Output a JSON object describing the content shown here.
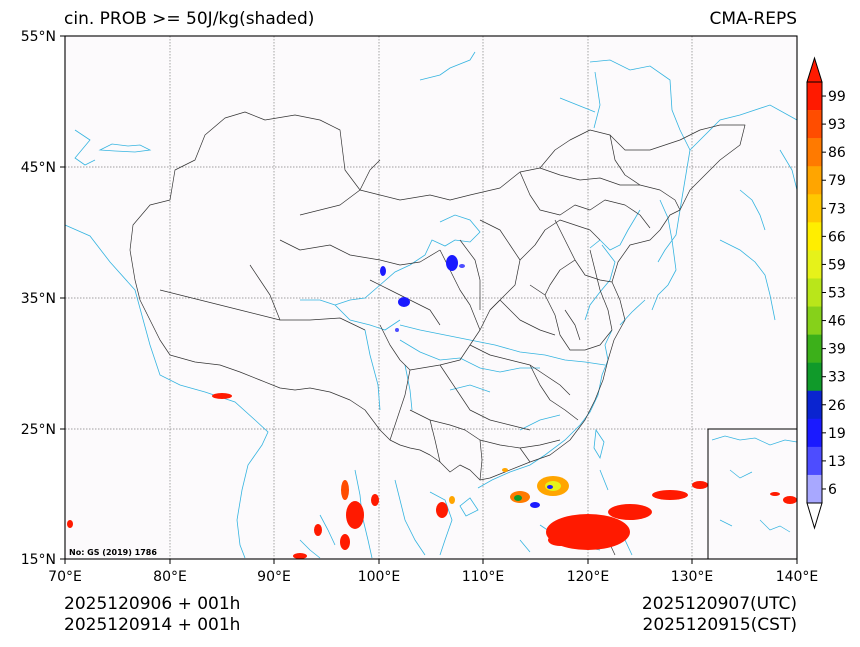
{
  "header": {
    "title_left": "cin. PROB >= 50J/kg(shaded)",
    "title_right": "CMA-REPS"
  },
  "axes": {
    "lat_labels": [
      "55°N",
      "45°N",
      "35°N",
      "25°N",
      "15°N"
    ],
    "lon_labels": [
      "70°E",
      "80°E",
      "90°E",
      "100°E",
      "110°E",
      "120°E",
      "130°E",
      "140°E"
    ]
  },
  "map": {
    "extent": {
      "lon": [
        70,
        140
      ],
      "lat": [
        15,
        55
      ]
    },
    "stamp": "No: GS (2019) 1786"
  },
  "colorbar": {
    "labels": [
      "99",
      "93",
      "86",
      "79",
      "73",
      "66",
      "59",
      "53",
      "46",
      "39",
      "33",
      "26",
      "19",
      "13",
      "6"
    ],
    "colors": [
      "#ff1a00",
      "#ff4d00",
      "#ff7a00",
      "#ffa500",
      "#ffc800",
      "#ffee00",
      "#e6f21a",
      "#b9e61a",
      "#86d11a",
      "#3cb01a",
      "#109a2a",
      "#0a24d0",
      "#1a1aff",
      "#4d4dff",
      "#a8a8ff"
    ],
    "over_color": "#ff1a00",
    "under_color": "#ffffff"
  },
  "footer": {
    "init_utc": "2025120906  +  001h",
    "init_cst": "2025120914  +  001h",
    "valid_utc": "2025120907(UTC)",
    "valid_cst": "2025120915(CST)"
  }
}
